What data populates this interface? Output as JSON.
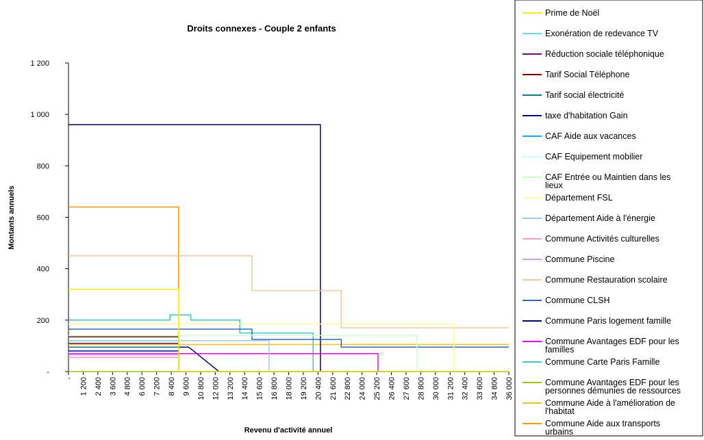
{
  "chart_data": {
    "type": "line",
    "title": "Droits connexes - Couple 2 enfants",
    "xlabel": "Revenu d'activité annuel",
    "ylabel": "Montants annuels",
    "ylim": [
      0,
      1200
    ],
    "y_ticks": [
      {
        "value": 0,
        "label": "-"
      },
      {
        "value": 200,
        "label": "200"
      },
      {
        "value": 400,
        "label": "400"
      },
      {
        "value": 600,
        "label": "600"
      },
      {
        "value": 800,
        "label": "800"
      },
      {
        "value": 1000,
        "label": "1 000"
      },
      {
        "value": 1200,
        "label": "1 200"
      }
    ],
    "xlim": [
      0,
      36000
    ],
    "x_ticks": [
      {
        "value": 0,
        "label": "-"
      },
      {
        "value": 1200,
        "label": "1 200"
      },
      {
        "value": 2400,
        "label": "2 400"
      },
      {
        "value": 3600,
        "label": "3 600"
      },
      {
        "value": 4800,
        "label": "4 800"
      },
      {
        "value": 6000,
        "label": "6 000"
      },
      {
        "value": 7200,
        "label": "7 200"
      },
      {
        "value": 8400,
        "label": "8 400"
      },
      {
        "value": 9600,
        "label": "9 600"
      },
      {
        "value": 10800,
        "label": "10 800"
      },
      {
        "value": 12000,
        "label": "12 000"
      },
      {
        "value": 13200,
        "label": "13 200"
      },
      {
        "value": 14400,
        "label": "14 400"
      },
      {
        "value": 15600,
        "label": "15 600"
      },
      {
        "value": 16800,
        "label": "16 800"
      },
      {
        "value": 18000,
        "label": "18 000"
      },
      {
        "value": 19200,
        "label": "19 200"
      },
      {
        "value": 20400,
        "label": "20 400"
      },
      {
        "value": 21600,
        "label": "21 600"
      },
      {
        "value": 22800,
        "label": "22 800"
      },
      {
        "value": 24000,
        "label": "24 000"
      },
      {
        "value": 25200,
        "label": "25 200"
      },
      {
        "value": 26400,
        "label": "26 400"
      },
      {
        "value": 27600,
        "label": "27 600"
      },
      {
        "value": 28800,
        "label": "28 800"
      },
      {
        "value": 30000,
        "label": "30 000"
      },
      {
        "value": 31200,
        "label": "31 200"
      },
      {
        "value": 32400,
        "label": "32 400"
      },
      {
        "value": 33600,
        "label": "33 600"
      },
      {
        "value": 34800,
        "label": "34 800"
      },
      {
        "value": 36000,
        "label": "36 000"
      }
    ],
    "grid": false,
    "legend_position": "right",
    "series": [
      {
        "name": "Prime de Noël",
        "color": "#ffee00",
        "points": [
          [
            0,
            320
          ],
          [
            9000,
            320
          ],
          [
            9000,
            0
          ],
          [
            36000,
            0
          ]
        ]
      },
      {
        "name": "Exonération de redevance TV",
        "color": "#66dddd",
        "points": [
          [
            0,
            120
          ],
          [
            9000,
            120
          ],
          [
            9000,
            0
          ],
          [
            36000,
            0
          ]
        ]
      },
      {
        "name": "Réduction sociale téléphonique",
        "color": "#800080",
        "points": [
          [
            0,
            110
          ],
          [
            9000,
            110
          ],
          [
            9000,
            0
          ],
          [
            36000,
            0
          ]
        ]
      },
      {
        "name": "Tarif Social Téléphone",
        "color": "#8b0000",
        "points": [
          [
            0,
            135
          ],
          [
            9000,
            135
          ],
          [
            9000,
            0
          ],
          [
            36000,
            0
          ]
        ]
      },
      {
        "name": "Tarif  social électricité",
        "color": "#008080",
        "points": [
          [
            0,
            95
          ],
          [
            9000,
            95
          ],
          [
            9000,
            0
          ],
          [
            36000,
            0
          ]
        ]
      },
      {
        "name": "taxe d'habitation Gain",
        "color": "#0000aa",
        "points": [
          [
            0,
            80
          ],
          [
            9000,
            80
          ],
          [
            9000,
            95
          ],
          [
            9800,
            95
          ],
          [
            10100,
            85
          ],
          [
            12300,
            0
          ],
          [
            36000,
            0
          ]
        ]
      },
      {
        "name": "CAF Aide aux vacances",
        "color": "#00b0f0",
        "points": [
          [
            0,
            110
          ],
          [
            9000,
            110
          ],
          [
            9000,
            0
          ],
          [
            36000,
            0
          ]
        ]
      },
      {
        "name": "CAF Equipement mobilier",
        "color": "#ccffff",
        "points": [
          [
            0,
            75
          ],
          [
            9000,
            75
          ],
          [
            9000,
            0
          ],
          [
            36000,
            0
          ]
        ]
      },
      {
        "name": "CAF Entrée ou Maintien dans les lieux",
        "color": "#ccffcc",
        "points": [
          [
            0,
            140
          ],
          [
            28500,
            140
          ],
          [
            28500,
            0
          ],
          [
            36000,
            0
          ]
        ]
      },
      {
        "name": "Département  FSL",
        "color": "#ffff99",
        "points": [
          [
            0,
            185
          ],
          [
            31500,
            185
          ],
          [
            31500,
            0
          ],
          [
            36000,
            0
          ]
        ]
      },
      {
        "name": "Département Aide à l'énergie",
        "color": "#99ccff",
        "points": [
          [
            0,
            120
          ],
          [
            16400,
            120
          ],
          [
            16400,
            0
          ],
          [
            36000,
            0
          ]
        ]
      },
      {
        "name": "Commune Activités culturelles",
        "color": "#ff99cc",
        "points": [
          [
            0,
            55
          ],
          [
            9000,
            55
          ],
          [
            9000,
            0
          ],
          [
            36000,
            0
          ]
        ]
      },
      {
        "name": "Commune Piscine",
        "color": "#cc99ff",
        "points": [
          [
            0,
            65
          ],
          [
            9000,
            65
          ],
          [
            9000,
            0
          ],
          [
            36000,
            0
          ]
        ]
      },
      {
        "name": "Commune Restauration scolaire",
        "color": "#f4c7a1",
        "points": [
          [
            0,
            450
          ],
          [
            15000,
            450
          ],
          [
            15000,
            315
          ],
          [
            22300,
            315
          ],
          [
            22300,
            170
          ],
          [
            36000,
            170
          ]
        ]
      },
      {
        "name": "Commune CLSH",
        "color": "#3366cc",
        "points": [
          [
            0,
            165
          ],
          [
            15000,
            165
          ],
          [
            15000,
            125
          ],
          [
            22300,
            125
          ],
          [
            22300,
            95
          ],
          [
            36000,
            95
          ]
        ]
      },
      {
        "name": "Commune Paris logement famille",
        "color": "#000080",
        "points": [
          [
            0,
            960
          ],
          [
            20600,
            960
          ],
          [
            20600,
            0
          ],
          [
            36000,
            0
          ]
        ]
      },
      {
        "name": "Commune Avantages EDF pour les familles",
        "color": "#ff00ff",
        "points": [
          [
            0,
            70
          ],
          [
            25300,
            70
          ],
          [
            25300,
            0
          ],
          [
            36000,
            0
          ]
        ]
      },
      {
        "name": "Commune Carte Paris Famille",
        "color": "#33cccc",
        "points": [
          [
            0,
            200
          ],
          [
            8300,
            200
          ],
          [
            8300,
            220
          ],
          [
            10000,
            220
          ],
          [
            10000,
            200
          ],
          [
            14000,
            200
          ],
          [
            14000,
            150
          ],
          [
            20000,
            150
          ],
          [
            20000,
            0
          ],
          [
            36000,
            0
          ]
        ]
      },
      {
        "name": "Commune Avantages EDF pour les personnes démunies de ressources",
        "color": "#99cc00",
        "points": [
          [
            0,
            0
          ],
          [
            36000,
            0
          ]
        ]
      },
      {
        "name": "Commune Aide à l'amélioration de l'habitat",
        "color": "#ffc000",
        "points": [
          [
            0,
            105
          ],
          [
            36000,
            105
          ]
        ]
      },
      {
        "name": "Commune Aide aux transports urbains",
        "color": "#ff9900",
        "points": [
          [
            0,
            640
          ],
          [
            9000,
            640
          ],
          [
            9000,
            0
          ],
          [
            36000,
            0
          ]
        ]
      }
    ]
  }
}
